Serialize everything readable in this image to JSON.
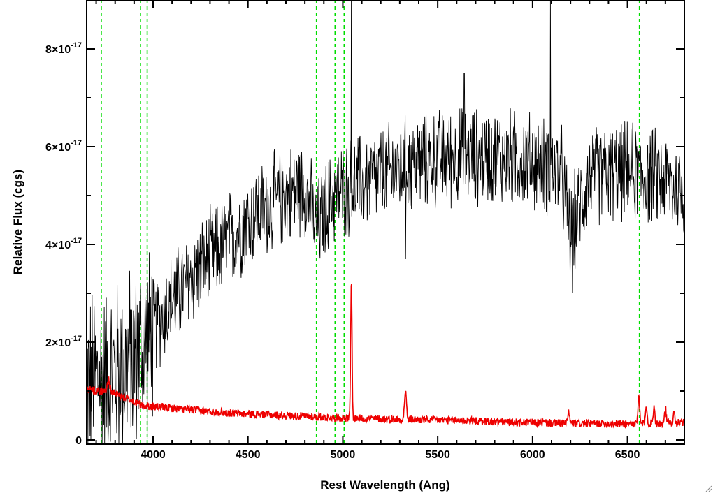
{
  "chart_data": {
    "type": "line",
    "xlabel": "Rest Wavelength (Ang)",
    "ylabel": "Relative Flux (cgs)",
    "xlim": [
      3650,
      6800
    ],
    "ylim": [
      0,
      9e-17
    ],
    "x_ticks": [
      {
        "value": 4000,
        "label": "4000"
      },
      {
        "value": 4500,
        "label": "4500"
      },
      {
        "value": 5000,
        "label": "5000"
      },
      {
        "value": 5500,
        "label": "5500"
      },
      {
        "value": 6000,
        "label": "6000"
      },
      {
        "value": 6500,
        "label": "6500"
      }
    ],
    "y_ticks": [
      {
        "value": 0,
        "mant": "0",
        "exp": ""
      },
      {
        "value": 2e-17,
        "mant": "2×10",
        "exp": "-17"
      },
      {
        "value": 4e-17,
        "mant": "4×10",
        "exp": "-17"
      },
      {
        "value": 6e-17,
        "mant": "6×10",
        "exp": "-17"
      },
      {
        "value": 8e-17,
        "mant": "8×10",
        "exp": "-17"
      }
    ],
    "reference_lines": [
      3727,
      3934,
      3969,
      4861,
      4959,
      5007,
      6563
    ],
    "series": [
      {
        "color": "#000000",
        "noise_amplitude": 9e-18,
        "x": [
          3650,
          3750,
          3850,
          3950,
          4050,
          4200,
          4350,
          4500,
          4650,
          4800,
          4861,
          4950,
          5050,
          5200,
          5400,
          5600,
          5800,
          6000,
          6150,
          6200,
          6300,
          6500,
          6700,
          6800
        ],
        "y": [
          1.2e-17,
          1.3e-17,
          1.5e-17,
          1.9e-17,
          2.6e-17,
          3.3e-17,
          3.9e-17,
          4.5e-17,
          4.9e-17,
          5.2e-17,
          4.3e-17,
          5e-17,
          5.2e-17,
          5.4e-17,
          5.7e-17,
          5.8e-17,
          5.8e-17,
          5.7e-17,
          5.5e-17,
          4.2e-17,
          5.4e-17,
          5.5e-17,
          5.3e-17,
          5.1e-17
        ],
        "spikes": [
          {
            "x": 5045,
            "y": 9e-17
          },
          {
            "x": 6095,
            "y": 9e-17
          },
          {
            "x": 5640,
            "y": 7.5e-17
          },
          {
            "x": 5330,
            "y": 3.7e-17
          },
          {
            "x": 6210,
            "y": 3e-17
          }
        ]
      },
      {
        "color": "#ee0000",
        "noise_amplitude": 8e-19,
        "x": [
          3650,
          3800,
          3950,
          4100,
          4400,
          4700,
          5000,
          5300,
          5600,
          5900,
          6200,
          6500,
          6800
        ],
        "y": [
          1.05e-17,
          9.5e-18,
          7e-18,
          6.5e-18,
          5.5e-18,
          5e-18,
          4.5e-18,
          4.2e-18,
          4e-18,
          3.6e-18,
          3.4e-18,
          3.3e-18,
          3.5e-18
        ],
        "peaks": [
          {
            "x": 5045,
            "height": 2.8e-17,
            "width": 5
          },
          {
            "x": 5330,
            "height": 6e-18,
            "width": 7
          },
          {
            "x": 6560,
            "height": 5.5e-18,
            "width": 6
          },
          {
            "x": 6600,
            "height": 3.5e-18,
            "width": 6
          },
          {
            "x": 6640,
            "height": 3.5e-18,
            "width": 6
          },
          {
            "x": 6700,
            "height": 3e-18,
            "width": 6
          },
          {
            "x": 6745,
            "height": 2.5e-18,
            "width": 6
          },
          {
            "x": 3765,
            "height": 2.5e-18,
            "width": 10
          },
          {
            "x": 6190,
            "height": 2.5e-18,
            "width": 6
          }
        ]
      }
    ]
  }
}
